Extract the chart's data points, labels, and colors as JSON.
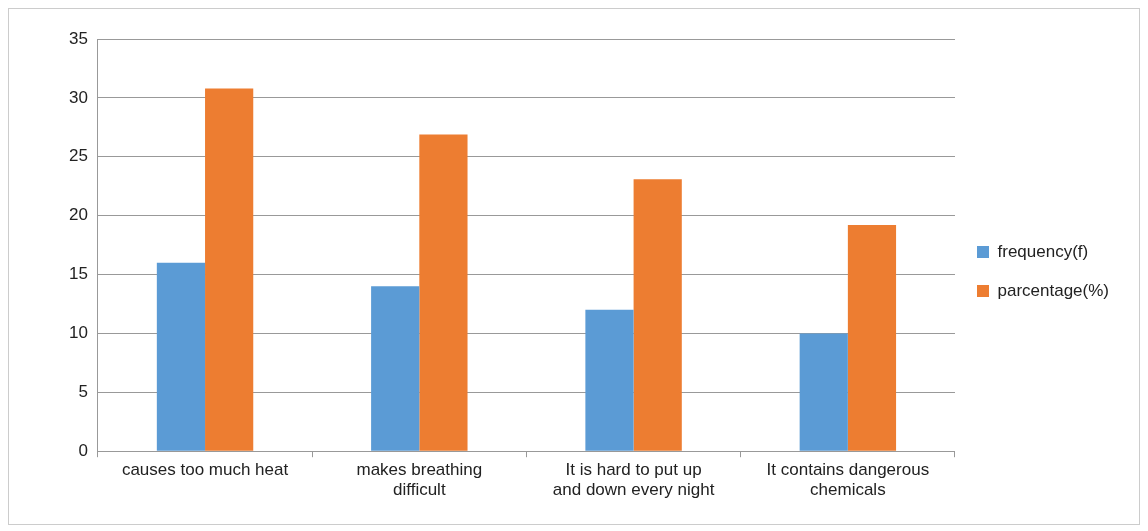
{
  "chart_data": {
    "type": "bar",
    "categories": [
      "causes too much heat",
      "makes breathing difficult",
      "It is hard to put up and down every night",
      "It contains dangerous chemicals"
    ],
    "series": [
      {
        "name": "frequency(f)",
        "color": "#5b9bd5",
        "values": [
          16,
          14,
          12,
          10
        ]
      },
      {
        "name": "parcentage(%)",
        "color": "#ed7d31",
        "values": [
          30.8,
          26.9,
          23.1,
          19.2
        ]
      }
    ],
    "ylim": [
      0,
      35
    ],
    "yticks": [
      0,
      5,
      10,
      15,
      20,
      25,
      30,
      35
    ],
    "grid": "y",
    "legend": "right"
  }
}
